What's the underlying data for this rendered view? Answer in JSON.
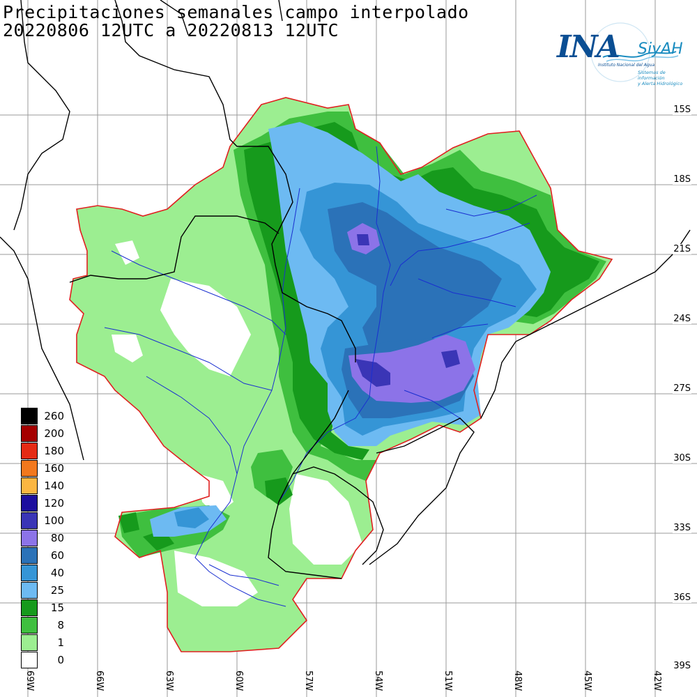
{
  "title": {
    "line1": "Precipitaciones semanales campo interpolado",
    "line2": "20220806 12UTC a 20220813 12UTC"
  },
  "logo": {
    "name": "INA",
    "siyah": "SiyAH",
    "subtitle": "Instituto Nacional del Agua",
    "tagline_1": "Sistemas de información",
    "tagline_2": "y Alerta Hidrológico"
  },
  "latitudes": [
    "15S",
    "18S",
    "21S",
    "24S",
    "27S",
    "30S",
    "33S",
    "36S",
    "39S"
  ],
  "longitudes": [
    "69W",
    "66W",
    "63W",
    "60W",
    "57W",
    "54W",
    "51W",
    "48W",
    "45W",
    "42W"
  ],
  "legend": [
    {
      "label": "260",
      "color": "#000000"
    },
    {
      "label": "200",
      "color": "#a50000"
    },
    {
      "label": "180",
      "color": "#e52b14"
    },
    {
      "label": "160",
      "color": "#f2781d"
    },
    {
      "label": "140",
      "color": "#fbb641"
    },
    {
      "label": "120",
      "color": "#1c0e9e"
    },
    {
      "label": "100",
      "color": "#3a35b6"
    },
    {
      "label": "80",
      "color": "#8c73e8"
    },
    {
      "label": "60",
      "color": "#2b72b8"
    },
    {
      "label": "40",
      "color": "#3595d6"
    },
    {
      "label": "25",
      "color": "#6dbaf2"
    },
    {
      "label": "15",
      "color": "#169a1c"
    },
    {
      "label": "8",
      "color": "#3fbf3f"
    },
    {
      "label": "1",
      "color": "#9cee91"
    },
    {
      "label": "0",
      "color": "#ffffff"
    }
  ]
}
